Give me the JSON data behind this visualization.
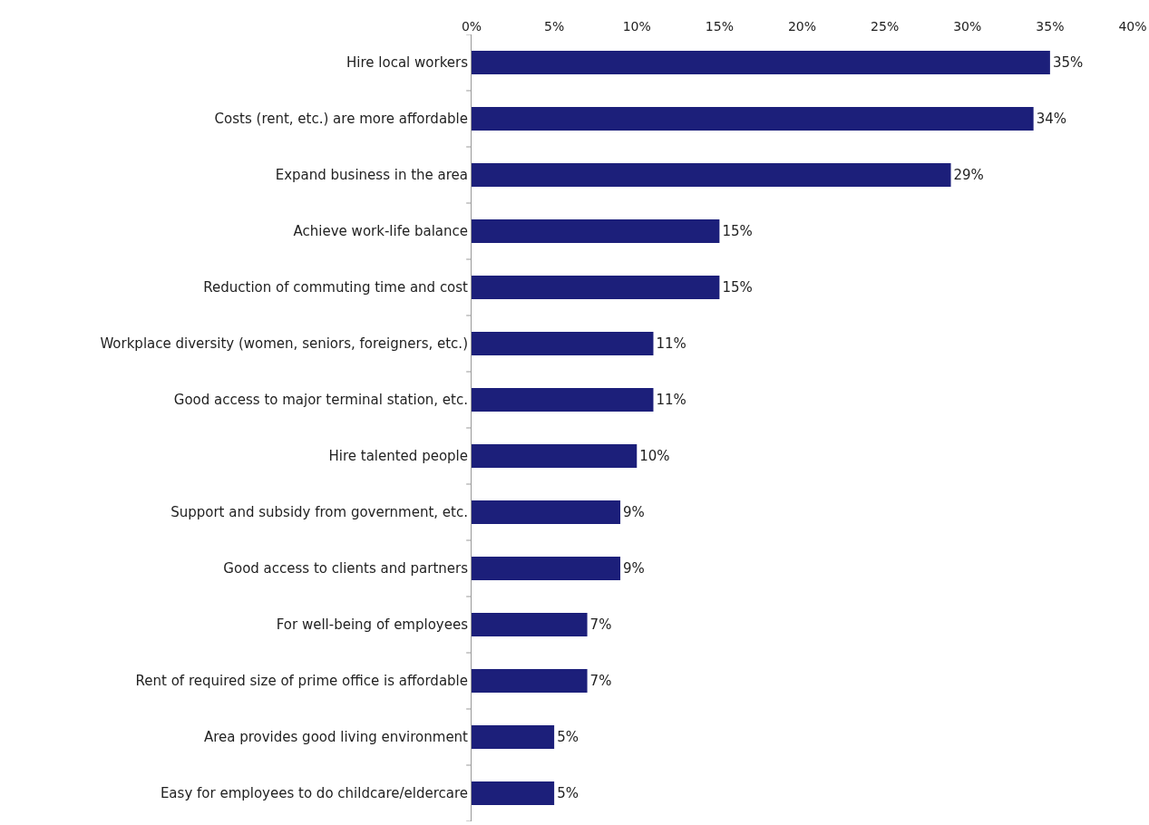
{
  "chart_data": {
    "type": "bar",
    "orientation": "horizontal",
    "categories": [
      "Hire local workers",
      "Costs (rent, etc.) are more affordable",
      "Expand business in the area",
      "Achieve work-life balance",
      "Reduction of commuting time and cost",
      "Workplace diversity (women, seniors, foreigners, etc.)",
      "Good access to major terminal station, etc.",
      "Hire talented people",
      "Support and subsidy from government, etc.",
      "Good access to clients and partners",
      "For well-being of employees",
      "Rent of required size of prime office is affordable",
      "Area provides good living environment",
      "Easy for employees to do childcare/eldercare"
    ],
    "values": [
      35,
      34,
      29,
      15,
      15,
      11,
      11,
      10,
      9,
      9,
      7,
      7,
      5,
      5
    ],
    "value_labels": [
      "35%",
      "34%",
      "29%",
      "15%",
      "15%",
      "11%",
      "11%",
      "10%",
      "9%",
      "9%",
      "7%",
      "7%",
      "5%",
      "5%"
    ],
    "color": "#1c1f7a",
    "xlim": [
      0,
      40
    ],
    "xticks": [
      {
        "value": 0,
        "label": "0%"
      },
      {
        "value": 5,
        "label": "5%"
      },
      {
        "value": 10,
        "label": "10%"
      },
      {
        "value": 15,
        "label": "15%"
      },
      {
        "value": 20,
        "label": "20%"
      },
      {
        "value": 25,
        "label": "25%"
      },
      {
        "value": 30,
        "label": "30%"
      },
      {
        "value": 35,
        "label": "35%"
      },
      {
        "value": 40,
        "label": "40%"
      }
    ],
    "grid": false
  }
}
